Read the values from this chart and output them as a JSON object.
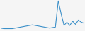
{
  "values": [
    3,
    2,
    2,
    2,
    2,
    3,
    4,
    5,
    6,
    7,
    8,
    9,
    8,
    7,
    6,
    5,
    4,
    3,
    4,
    5,
    55,
    30,
    8,
    14,
    8,
    16,
    10,
    18,
    14,
    12
  ],
  "line_color": "#3a8fc8",
  "background_color": "#f5f5f5",
  "linewidth": 0.8
}
